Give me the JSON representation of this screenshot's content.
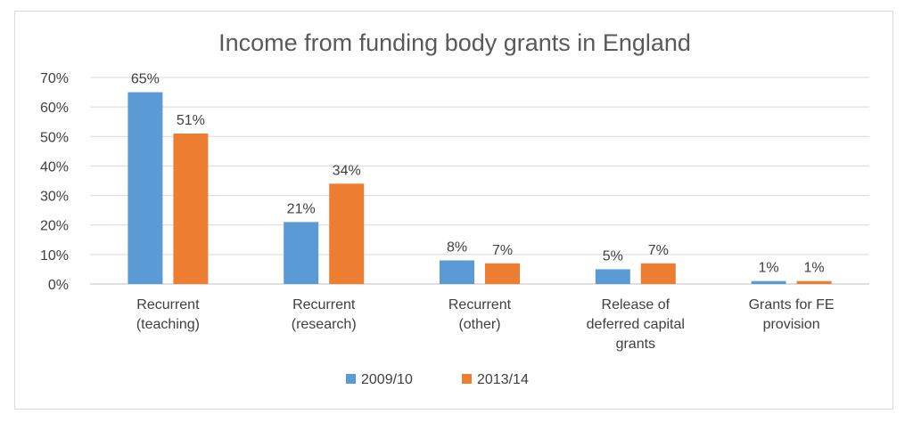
{
  "chart_data": {
    "type": "bar",
    "title": "Income from funding body grants in England",
    "xlabel": "",
    "ylabel": "",
    "ylim": [
      0,
      70
    ],
    "yticks": [
      0,
      10,
      20,
      30,
      40,
      50,
      60,
      70
    ],
    "ytick_labels": [
      "0%",
      "10%",
      "20%",
      "30%",
      "40%",
      "50%",
      "60%",
      "70%"
    ],
    "grid": true,
    "legend_position": "bottom",
    "categories": [
      [
        "Recurrent",
        "(teaching)"
      ],
      [
        "Recurrent",
        "(research)"
      ],
      [
        "Recurrent",
        "(other)"
      ],
      [
        "Release of",
        "deferred capital",
        "grants"
      ],
      [
        "Grants for FE",
        "provision"
      ]
    ],
    "series": [
      {
        "name": "2009/10",
        "color": "#5b9bd5",
        "values": [
          65,
          21,
          8,
          5,
          1
        ],
        "labels": [
          "65%",
          "21%",
          "8%",
          "5%",
          "1%"
        ]
      },
      {
        "name": "2013/14",
        "color": "#ed7d31",
        "values": [
          51,
          34,
          7,
          7,
          1
        ],
        "labels": [
          "51%",
          "34%",
          "7%",
          "7%",
          "1%"
        ]
      }
    ]
  }
}
